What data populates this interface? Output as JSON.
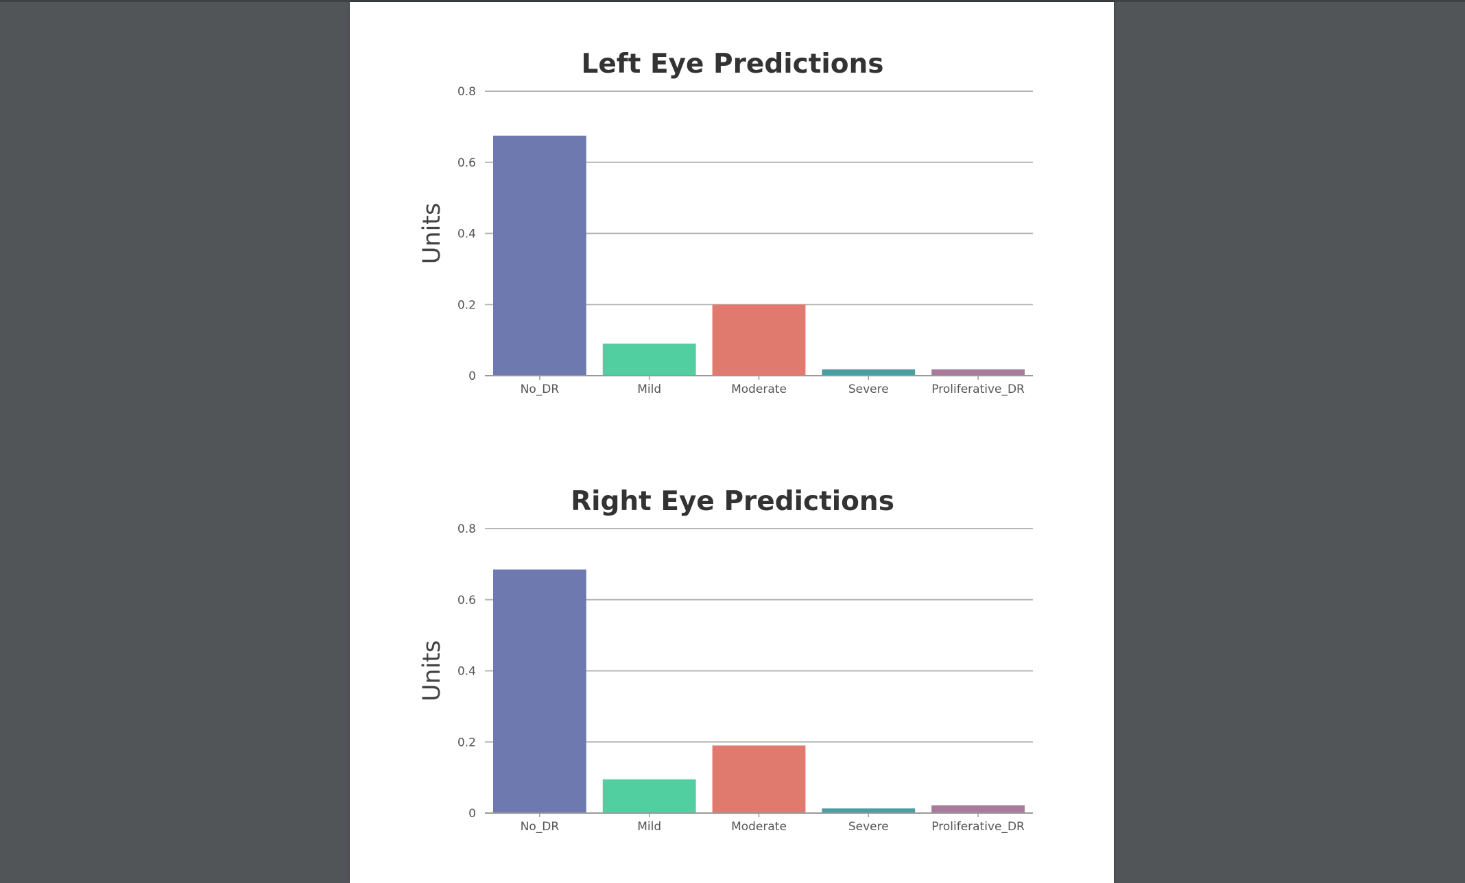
{
  "colors": {
    "background": "#515558",
    "page": "#ffffff",
    "gridline": "#b5b5b5",
    "axis": "#999999",
    "bar_colors": [
      "#6e7aaf",
      "#52cfa0",
      "#e07a6e",
      "#4a9ea2",
      "#a87b9d"
    ]
  },
  "chart_data": [
    {
      "type": "bar",
      "title": "Left Eye Predictions",
      "xlabel": "",
      "ylabel": "Units",
      "categories": [
        "No_DR",
        "Mild",
        "Moderate",
        "Severe",
        "Proliferative_DR"
      ],
      "values": [
        0.675,
        0.09,
        0.2,
        0.018,
        0.018
      ],
      "ylim": [
        0,
        0.8
      ],
      "yticks": [
        0,
        0.2,
        0.4,
        0.6,
        0.8
      ],
      "ytick_labels": [
        "0",
        "0.2",
        "0.4",
        "0.6",
        "0.8"
      ],
      "grid": true,
      "legend": "none"
    },
    {
      "type": "bar",
      "title": "Right Eye Predictions",
      "xlabel": "",
      "ylabel": "Units",
      "categories": [
        "No_DR",
        "Mild",
        "Moderate",
        "Severe",
        "Proliferative_DR"
      ],
      "values": [
        0.685,
        0.095,
        0.19,
        0.013,
        0.022
      ],
      "ylim": [
        0,
        0.8
      ],
      "yticks": [
        0,
        0.2,
        0.4,
        0.6,
        0.8
      ],
      "ytick_labels": [
        "0",
        "0.2",
        "0.4",
        "0.6",
        "0.8"
      ],
      "grid": true,
      "legend": "none"
    }
  ]
}
